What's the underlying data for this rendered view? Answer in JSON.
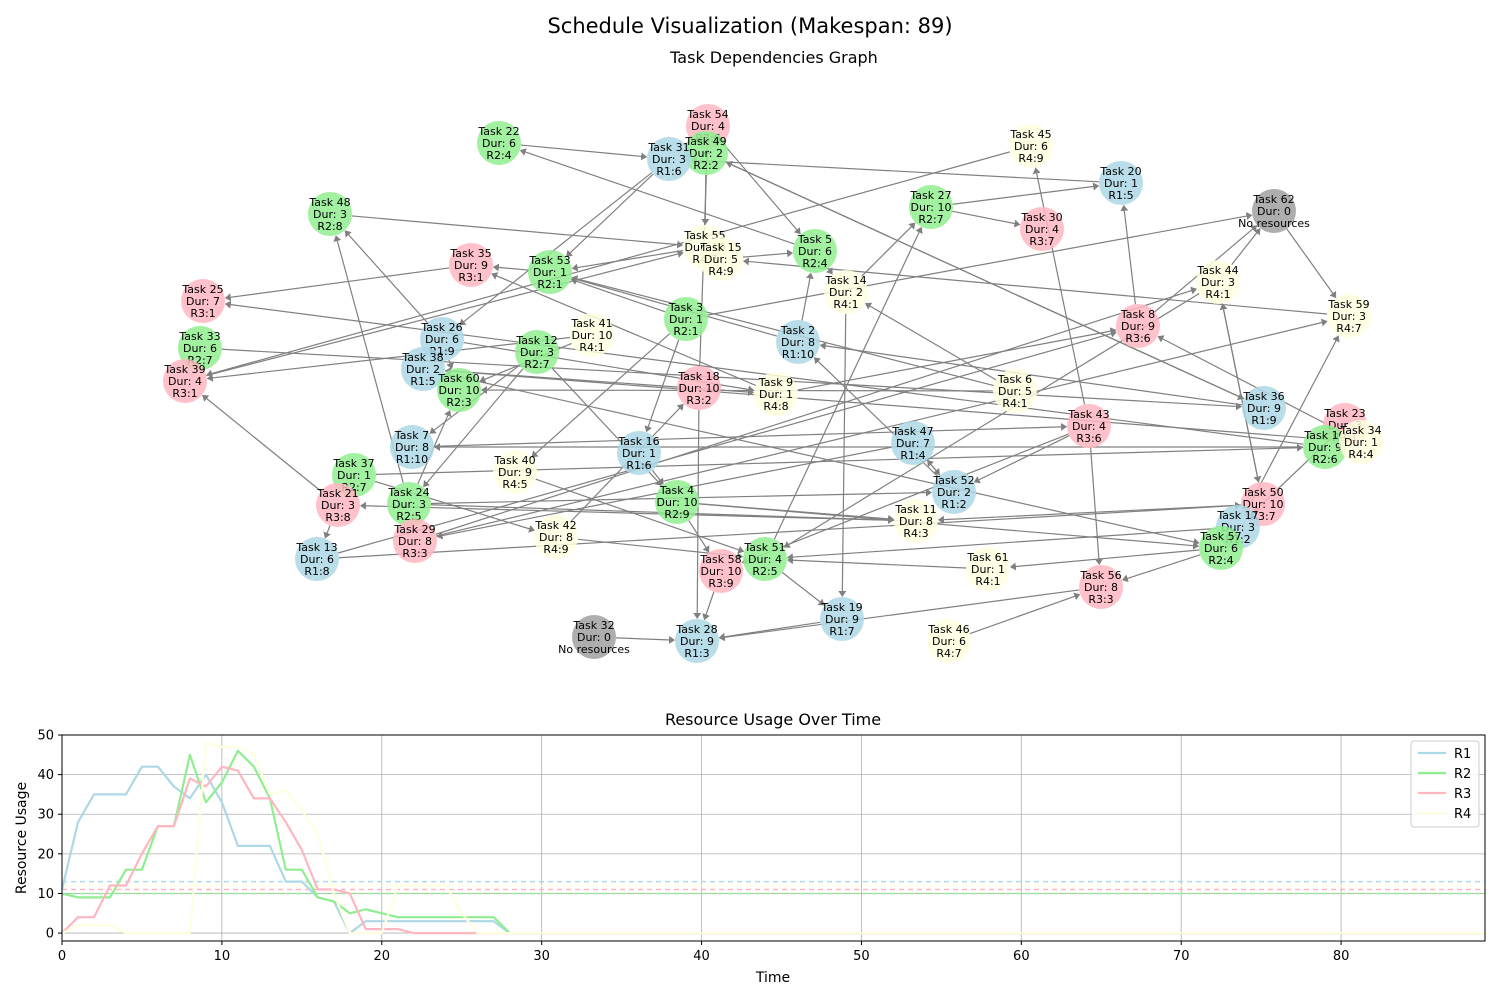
{
  "title": "Schedule Visualization (Makespan: 89)",
  "graph": {
    "title": "Task Dependencies Graph",
    "colors": {
      "R1": "#add8e6",
      "R2": "#90ee90",
      "R3": "#ffb6c1",
      "R4": "#ffffe0",
      "none": "#a0a0a0",
      "edge": "#808080"
    },
    "nodes": [
      {
        "id": "54",
        "lines": [
          "Task 54",
          "Dur: 4",
          "R3:6"
        ],
        "res": "R3"
      },
      {
        "id": "49",
        "lines": [
          "Task 49",
          "Dur: 2",
          "R2:2"
        ],
        "res": "R2"
      },
      {
        "id": "22",
        "lines": [
          "Task 22",
          "Dur: 6",
          "R2:4"
        ],
        "res": "R2"
      },
      {
        "id": "31",
        "lines": [
          "Task 31",
          "Dur: 3",
          "R1:6"
        ],
        "res": "R1"
      },
      {
        "id": "45",
        "lines": [
          "Task 45",
          "Dur: 6",
          "R4:9"
        ],
        "res": "R4"
      },
      {
        "id": "20",
        "lines": [
          "Task 20",
          "Dur: 1",
          "R1:5"
        ],
        "res": "R1"
      },
      {
        "id": "62",
        "lines": [
          "Task 62",
          "Dur: 0",
          "No resources"
        ],
        "res": "none"
      },
      {
        "id": "27",
        "lines": [
          "Task 27",
          "Dur: 10",
          "R2:7"
        ],
        "res": "R2"
      },
      {
        "id": "30",
        "lines": [
          "Task 30",
          "Dur: 4",
          "R3:7"
        ],
        "res": "R3"
      },
      {
        "id": "48",
        "lines": [
          "Task 48",
          "Dur: 3",
          "R2:8"
        ],
        "res": "R2"
      },
      {
        "id": "55",
        "lines": [
          "Task 55",
          "Dur: 10",
          "R4:7"
        ],
        "res": "R4"
      },
      {
        "id": "15",
        "lines": [
          "Task 15",
          "Dur: 5",
          "R4:9"
        ],
        "res": "R4"
      },
      {
        "id": "5",
        "lines": [
          "Task 5",
          "Dur: 6",
          "R2:4"
        ],
        "res": "R2"
      },
      {
        "id": "35",
        "lines": [
          "Task 35",
          "Dur: 9",
          "R3:1"
        ],
        "res": "R3"
      },
      {
        "id": "53",
        "lines": [
          "Task 53",
          "Dur: 1",
          "R2:1"
        ],
        "res": "R2"
      },
      {
        "id": "14",
        "lines": [
          "Task 14",
          "Dur: 2",
          "R4:1"
        ],
        "res": "R4"
      },
      {
        "id": "44",
        "lines": [
          "Task 44",
          "Dur: 3",
          "R4:1"
        ],
        "res": "R4"
      },
      {
        "id": "25",
        "lines": [
          "Task 25",
          "Dur: 7",
          "R3:1"
        ],
        "res": "R3"
      },
      {
        "id": "59",
        "lines": [
          "Task 59",
          "Dur: 3",
          "R4:7"
        ],
        "res": "R4"
      },
      {
        "id": "8",
        "lines": [
          "Task 8",
          "Dur: 9",
          "R3:6"
        ],
        "res": "R3"
      },
      {
        "id": "3",
        "lines": [
          "Task 3",
          "Dur: 1",
          "R2:1"
        ],
        "res": "R2"
      },
      {
        "id": "41",
        "lines": [
          "Task 41",
          "Dur: 10",
          "R4:1"
        ],
        "res": "R4"
      },
      {
        "id": "26",
        "lines": [
          "Task 26",
          "Dur: 6",
          "R1:9"
        ],
        "res": "R1"
      },
      {
        "id": "33",
        "lines": [
          "Task 33",
          "Dur: 6",
          "R2:7"
        ],
        "res": "R2"
      },
      {
        "id": "2",
        "lines": [
          "Task 2",
          "Dur: 8",
          "R1:10"
        ],
        "res": "R1"
      },
      {
        "id": "12",
        "lines": [
          "Task 12",
          "Dur: 3",
          "R2:7"
        ],
        "res": "R2"
      },
      {
        "id": "38",
        "lines": [
          "Task 38",
          "Dur: 2",
          "R1:5"
        ],
        "res": "R1"
      },
      {
        "id": "39",
        "lines": [
          "Task 39",
          "Dur: 4",
          "R3:1"
        ],
        "res": "R3"
      },
      {
        "id": "60",
        "lines": [
          "Task 60",
          "Dur: 10",
          "R2:3"
        ],
        "res": "R2"
      },
      {
        "id": "18",
        "lines": [
          "Task 18",
          "Dur: 10",
          "R3:2"
        ],
        "res": "R3"
      },
      {
        "id": "9",
        "lines": [
          "Task 9",
          "Dur: 1",
          "R4:8"
        ],
        "res": "R4"
      },
      {
        "id": "6",
        "lines": [
          "Task 6",
          "Dur: 5",
          "R4:1"
        ],
        "res": "R4"
      },
      {
        "id": "36",
        "lines": [
          "Task 36",
          "Dur: 9",
          "R1:9"
        ],
        "res": "R1"
      },
      {
        "id": "23",
        "lines": [
          "Task 23",
          "Dur: 3",
          "R3:1"
        ],
        "res": "R3"
      },
      {
        "id": "10",
        "lines": [
          "Task 10",
          "Dur: 9",
          "R2:6"
        ],
        "res": "R2"
      },
      {
        "id": "34",
        "lines": [
          "Task 34",
          "Dur: 1",
          "R4:4"
        ],
        "res": "R4"
      },
      {
        "id": "43",
        "lines": [
          "Task 43",
          "Dur: 4",
          "R3:6"
        ],
        "res": "R3"
      },
      {
        "id": "7",
        "lines": [
          "Task 7",
          "Dur: 8",
          "R1:10"
        ],
        "res": "R1"
      },
      {
        "id": "47",
        "lines": [
          "Task 47",
          "Dur: 7",
          "R1:4"
        ],
        "res": "R1"
      },
      {
        "id": "16",
        "lines": [
          "Task 16",
          "Dur: 1",
          "R1:6"
        ],
        "res": "R1"
      },
      {
        "id": "37",
        "lines": [
          "Task 37",
          "Dur: 1",
          "R2:7"
        ],
        "res": "R2"
      },
      {
        "id": "40",
        "lines": [
          "Task 40",
          "Dur: 9",
          "R4:5"
        ],
        "res": "R4"
      },
      {
        "id": "21",
        "lines": [
          "Task 21",
          "Dur: 3",
          "R3:8"
        ],
        "res": "R3"
      },
      {
        "id": "24",
        "lines": [
          "Task 24",
          "Dur: 3",
          "R2:5"
        ],
        "res": "R2"
      },
      {
        "id": "52",
        "lines": [
          "Task 52",
          "Dur: 2",
          "R1:2"
        ],
        "res": "R1"
      },
      {
        "id": "4",
        "lines": [
          "Task 4",
          "Dur: 10",
          "R2:9"
        ],
        "res": "R2"
      },
      {
        "id": "50",
        "lines": [
          "Task 50",
          "Dur: 10",
          "R3:7"
        ],
        "res": "R3"
      },
      {
        "id": "11",
        "lines": [
          "Task 11",
          "Dur: 8",
          "R4:3"
        ],
        "res": "R4"
      },
      {
        "id": "29",
        "lines": [
          "Task 29",
          "Dur: 8",
          "R3:3"
        ],
        "res": "R3"
      },
      {
        "id": "42",
        "lines": [
          "Task 42",
          "Dur: 8",
          "R4:9"
        ],
        "res": "R4"
      },
      {
        "id": "17",
        "lines": [
          "Task 17",
          "Dur: 3",
          "R1:2"
        ],
        "res": "R1"
      },
      {
        "id": "13",
        "lines": [
          "Task 13",
          "Dur: 6",
          "R1:8"
        ],
        "res": "R1"
      },
      {
        "id": "51",
        "lines": [
          "Task 51",
          "Dur: 4",
          "R2:5"
        ],
        "res": "R2"
      },
      {
        "id": "58",
        "lines": [
          "Task 58",
          "Dur: 10",
          "R3:9"
        ],
        "res": "R3"
      },
      {
        "id": "57",
        "lines": [
          "Task 57",
          "Dur: 6",
          "R2:4"
        ],
        "res": "R2"
      },
      {
        "id": "61",
        "lines": [
          "Task 61",
          "Dur: 1",
          "R4:1"
        ],
        "res": "R4"
      },
      {
        "id": "56",
        "lines": [
          "Task 56",
          "Dur: 8",
          "R3:3"
        ],
        "res": "R3"
      },
      {
        "id": "32",
        "lines": [
          "Task 32",
          "Dur: 0",
          "No resources"
        ],
        "res": "none"
      },
      {
        "id": "19",
        "lines": [
          "Task 19",
          "Dur: 9",
          "R1:7"
        ],
        "res": "R1"
      },
      {
        "id": "28",
        "lines": [
          "Task 28",
          "Dur: 9",
          "R1:3"
        ],
        "res": "R1"
      },
      {
        "id": "46",
        "lines": [
          "Task 46",
          "Dur: 6",
          "R4:7"
        ],
        "res": "R4"
      }
    ],
    "edges": [
      [
        "22",
        "31"
      ],
      [
        "20",
        "31"
      ],
      [
        "49",
        "55"
      ],
      [
        "54",
        "5"
      ],
      [
        "27",
        "20"
      ],
      [
        "27",
        "30"
      ],
      [
        "14",
        "27"
      ],
      [
        "48",
        "55"
      ],
      [
        "35",
        "25"
      ],
      [
        "53",
        "35"
      ],
      [
        "5",
        "22"
      ],
      [
        "15",
        "5"
      ],
      [
        "5",
        "14"
      ],
      [
        "14",
        "19"
      ],
      [
        "55",
        "53"
      ],
      [
        "31",
        "53"
      ],
      [
        "31",
        "26"
      ],
      [
        "49",
        "36"
      ],
      [
        "62",
        "59"
      ],
      [
        "8",
        "62"
      ],
      [
        "44",
        "62"
      ],
      [
        "8",
        "20"
      ],
      [
        "59",
        "15"
      ],
      [
        "3",
        "62"
      ],
      [
        "44",
        "51"
      ],
      [
        "44",
        "50"
      ],
      [
        "3",
        "53"
      ],
      [
        "3",
        "16"
      ],
      [
        "3",
        "40"
      ],
      [
        "2",
        "53"
      ],
      [
        "2",
        "5"
      ],
      [
        "41",
        "39"
      ],
      [
        "41",
        "60"
      ],
      [
        "26",
        "48"
      ],
      [
        "33",
        "36"
      ],
      [
        "26",
        "9"
      ],
      [
        "12",
        "24"
      ],
      [
        "12",
        "7"
      ],
      [
        "12",
        "4"
      ],
      [
        "38",
        "9"
      ],
      [
        "38",
        "57"
      ],
      [
        "45",
        "39"
      ],
      [
        "18",
        "54"
      ],
      [
        "9",
        "8"
      ],
      [
        "9",
        "35"
      ],
      [
        "6",
        "14"
      ],
      [
        "6",
        "60"
      ],
      [
        "6",
        "53"
      ],
      [
        "36",
        "2"
      ],
      [
        "36",
        "49"
      ],
      [
        "23",
        "17"
      ],
      [
        "10",
        "25"
      ],
      [
        "10",
        "7"
      ],
      [
        "34",
        "38"
      ],
      [
        "34",
        "8"
      ],
      [
        "43",
        "45"
      ],
      [
        "43",
        "58"
      ],
      [
        "43",
        "56"
      ],
      [
        "43",
        "52"
      ],
      [
        "7",
        "43"
      ],
      [
        "47",
        "29"
      ],
      [
        "47",
        "52"
      ],
      [
        "16",
        "4"
      ],
      [
        "37",
        "10"
      ],
      [
        "37",
        "42"
      ],
      [
        "24",
        "52"
      ],
      [
        "24",
        "11"
      ],
      [
        "24",
        "48"
      ],
      [
        "21",
        "39"
      ],
      [
        "21",
        "13"
      ],
      [
        "52",
        "47"
      ],
      [
        "4",
        "11"
      ],
      [
        "4",
        "58"
      ],
      [
        "4",
        "57"
      ],
      [
        "50",
        "11"
      ],
      [
        "50",
        "44"
      ],
      [
        "11",
        "21"
      ],
      [
        "29",
        "59"
      ],
      [
        "29",
        "44"
      ],
      [
        "42",
        "51"
      ],
      [
        "42",
        "18"
      ],
      [
        "17",
        "51"
      ],
      [
        "17",
        "59"
      ],
      [
        "13",
        "8"
      ],
      [
        "13",
        "50"
      ],
      [
        "51",
        "19"
      ],
      [
        "51",
        "27"
      ],
      [
        "58",
        "28"
      ],
      [
        "57",
        "61"
      ],
      [
        "57",
        "56"
      ],
      [
        "61",
        "51"
      ],
      [
        "56",
        "28"
      ],
      [
        "32",
        "28"
      ],
      [
        "46",
        "56"
      ],
      [
        "19",
        "28"
      ],
      [
        "18",
        "28"
      ],
      [
        "39",
        "55"
      ],
      [
        "24",
        "60"
      ],
      [
        "40",
        "51"
      ],
      [
        "52",
        "2"
      ],
      [
        "26",
        "60"
      ]
    ]
  },
  "usage_chart": {
    "title": "Resource Usage Over Time",
    "xlabel": "Time",
    "ylabel": "Resource Usage",
    "xticks": [
      "0",
      "10",
      "20",
      "30",
      "40",
      "50",
      "60",
      "70",
      "80"
    ],
    "yticks": [
      "0",
      "10",
      "20",
      "30",
      "40",
      "50"
    ]
  },
  "chart_data": {
    "type": "line",
    "title": "Resource Usage Over Time",
    "xlabel": "Time",
    "ylabel": "Resource Usage",
    "xlim": [
      0,
      89
    ],
    "ylim": [
      -2,
      50
    ],
    "grid": true,
    "legend_position": "top-right",
    "x": [
      0,
      1,
      2,
      3,
      4,
      5,
      6,
      7,
      8,
      9,
      10,
      11,
      12,
      13,
      14,
      15,
      16,
      17,
      18,
      19,
      20,
      21,
      22,
      23,
      24,
      25,
      26,
      27,
      28,
      29,
      30,
      89
    ],
    "series": [
      {
        "name": "R1",
        "color": "#add8e6",
        "capacity": 13,
        "values": [
          11,
          28,
          35,
          35,
          35,
          42,
          42,
          37,
          34,
          40,
          33,
          22,
          22,
          22,
          13,
          13,
          9,
          8,
          0,
          3,
          3,
          3,
          3,
          3,
          3,
          3,
          3,
          3,
          0,
          0,
          0,
          0
        ]
      },
      {
        "name": "R2",
        "color": "#90ee90",
        "capacity": 10,
        "values": [
          10,
          9,
          9,
          9,
          16,
          16,
          27,
          27,
          45,
          33,
          38,
          46,
          42,
          34,
          16,
          16,
          9,
          8,
          5,
          6,
          5,
          4,
          4,
          4,
          4,
          4,
          4,
          4,
          0,
          0,
          0,
          0
        ]
      },
      {
        "name": "R3",
        "color": "#ffb6c1",
        "capacity": 11,
        "values": [
          0,
          4,
          4,
          12,
          12,
          20,
          27,
          27,
          39,
          37,
          42,
          41,
          34,
          34,
          28,
          21,
          11,
          11,
          10,
          1,
          1,
          1,
          0,
          0,
          0,
          0,
          0,
          0,
          0,
          0,
          0,
          0
        ]
      },
      {
        "name": "R4",
        "color": "#ffffe0",
        "capacity": 12,
        "values": [
          0,
          2,
          2,
          2,
          0,
          0,
          0,
          0,
          0,
          48,
          47,
          47,
          45,
          35,
          36,
          31,
          25,
          10,
          0,
          0,
          0,
          12,
          12,
          12,
          12,
          5,
          0,
          0,
          0,
          0,
          0,
          0
        ]
      }
    ]
  }
}
